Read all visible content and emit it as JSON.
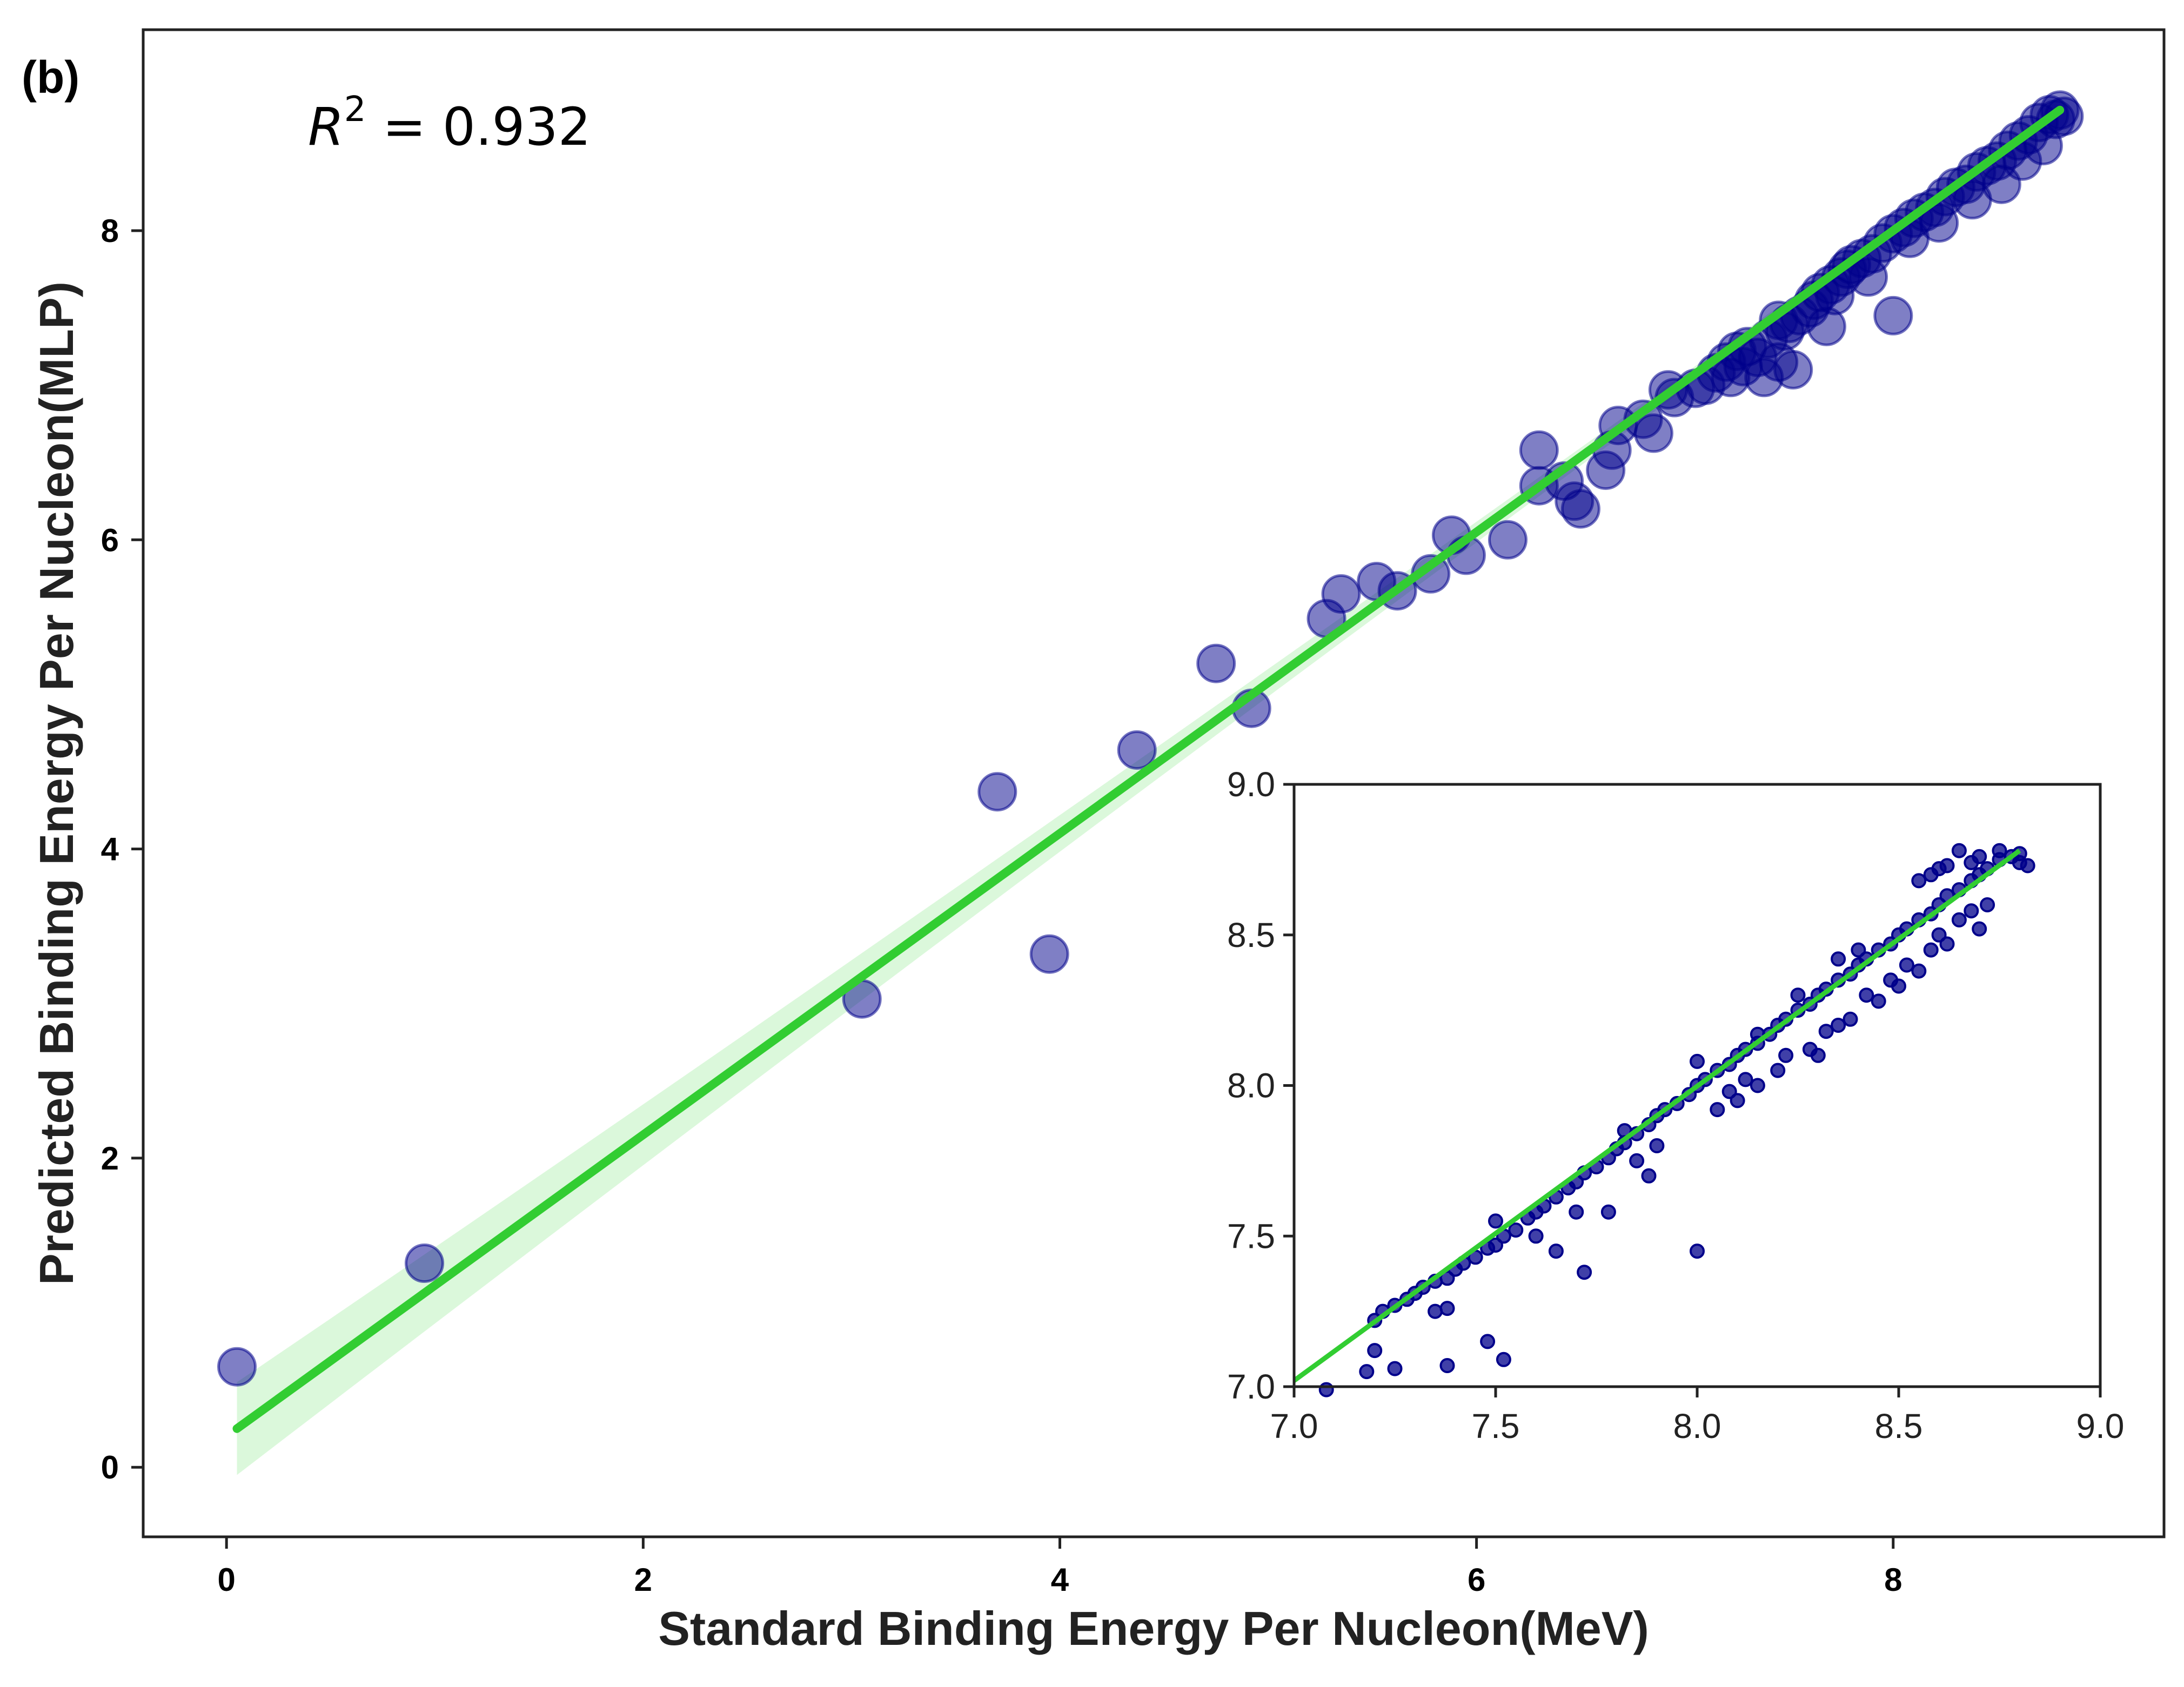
{
  "panel_label": "(b)",
  "annotation": {
    "r2_symbol": "R",
    "r2_exponent": "2",
    "r2_text": " = 0.932"
  },
  "colors": {
    "points": "#00008b",
    "fit_line": "#32cd32",
    "confidence_band": "#ccf5cc"
  },
  "chart_data": [
    {
      "type": "scatter",
      "xlabel": "Standard Binding Energy Per Nucleon(MeV)",
      "ylabel": "Predicted Binding Energy Per Nucleon(MLP)",
      "xlim": [
        -0.4,
        9.3
      ],
      "ylim": [
        -0.45,
        9.3
      ],
      "x_ticks": [
        "0",
        "2",
        "4",
        "6",
        "8"
      ],
      "y_ticks": [
        "0",
        "2",
        "4",
        "6",
        "8"
      ],
      "grid": false,
      "fit_line": {
        "x": [
          0.05,
          8.8
        ],
        "y": [
          0.25,
          8.78
        ]
      },
      "points": [
        [
          0.05,
          0.65
        ],
        [
          0.95,
          1.32
        ],
        [
          3.05,
          3.03
        ],
        [
          3.7,
          4.37
        ],
        [
          3.95,
          3.32
        ],
        [
          4.37,
          4.64
        ],
        [
          4.75,
          5.2
        ],
        [
          4.92,
          4.91
        ],
        [
          5.28,
          5.49
        ],
        [
          5.35,
          5.65
        ],
        [
          5.52,
          5.73
        ],
        [
          5.62,
          5.67
        ],
        [
          5.78,
          5.78
        ],
        [
          5.88,
          6.03
        ],
        [
          5.95,
          5.9
        ],
        [
          6.15,
          6.0
        ],
        [
          6.3,
          6.58
        ],
        [
          6.3,
          6.35
        ],
        [
          6.42,
          6.38
        ],
        [
          6.47,
          6.25
        ],
        [
          6.5,
          6.2
        ],
        [
          6.62,
          6.45
        ],
        [
          6.65,
          6.58
        ],
        [
          6.68,
          6.74
        ],
        [
          6.8,
          6.78
        ],
        [
          6.85,
          6.69
        ],
        [
          6.92,
          6.97
        ],
        [
          6.95,
          6.92
        ],
        [
          7.05,
          6.98
        ],
        [
          7.1,
          7.0
        ],
        [
          7.15,
          7.08
        ],
        [
          7.2,
          7.15
        ],
        [
          7.22,
          7.05
        ],
        [
          7.25,
          7.22
        ],
        [
          7.28,
          7.12
        ],
        [
          7.3,
          7.25
        ],
        [
          7.35,
          7.18
        ],
        [
          7.38,
          7.05
        ],
        [
          7.4,
          7.3
        ],
        [
          7.45,
          7.42
        ],
        [
          7.45,
          7.15
        ],
        [
          7.48,
          7.35
        ],
        [
          7.5,
          7.4
        ],
        [
          7.52,
          7.1
        ],
        [
          7.55,
          7.45
        ],
        [
          7.6,
          7.5
        ],
        [
          7.62,
          7.55
        ],
        [
          7.65,
          7.6
        ],
        [
          7.68,
          7.38
        ],
        [
          7.7,
          7.65
        ],
        [
          7.72,
          7.58
        ],
        [
          7.75,
          7.7
        ],
        [
          7.78,
          7.75
        ],
        [
          7.8,
          7.78
        ],
        [
          7.85,
          7.82
        ],
        [
          7.88,
          7.7
        ],
        [
          7.9,
          7.85
        ],
        [
          7.95,
          7.92
        ],
        [
          8.0,
          7.45
        ],
        [
          8.0,
          7.98
        ],
        [
          8.05,
          8.02
        ],
        [
          8.08,
          7.95
        ],
        [
          8.1,
          8.08
        ],
        [
          8.15,
          8.12
        ],
        [
          8.2,
          8.15
        ],
        [
          8.22,
          8.05
        ],
        [
          8.25,
          8.22
        ],
        [
          8.3,
          8.28
        ],
        [
          8.35,
          8.3
        ],
        [
          8.38,
          8.2
        ],
        [
          8.4,
          8.38
        ],
        [
          8.45,
          8.42
        ],
        [
          8.5,
          8.45
        ],
        [
          8.52,
          8.3
        ],
        [
          8.55,
          8.52
        ],
        [
          8.6,
          8.58
        ],
        [
          8.62,
          8.45
        ],
        [
          8.65,
          8.62
        ],
        [
          8.7,
          8.7
        ],
        [
          8.72,
          8.55
        ],
        [
          8.75,
          8.75
        ],
        [
          8.78,
          8.72
        ],
        [
          8.8,
          8.78
        ],
        [
          8.82,
          8.74
        ]
      ]
    },
    {
      "type": "scatter",
      "xlim": [
        7.0,
        9.0
      ],
      "ylim": [
        7.0,
        9.0
      ],
      "x_ticks": [
        "7.0",
        "7.5",
        "8.0",
        "8.5",
        "9.0"
      ],
      "y_ticks": [
        "7.0",
        "7.5",
        "8.0",
        "8.5",
        "9.0"
      ],
      "grid": false,
      "fit_line": {
        "x": [
          7.0,
          8.8
        ],
        "y": [
          7.02,
          8.78
        ]
      },
      "points": [
        [
          7.08,
          6.99
        ],
        [
          7.18,
          7.05
        ],
        [
          7.2,
          7.12
        ],
        [
          7.25,
          7.06
        ],
        [
          7.38,
          7.07
        ],
        [
          7.48,
          7.15
        ],
        [
          7.52,
          7.09
        ],
        [
          7.35,
          7.25
        ],
        [
          7.38,
          7.26
        ],
        [
          7.2,
          7.22
        ],
        [
          7.22,
          7.25
        ],
        [
          7.25,
          7.27
        ],
        [
          7.28,
          7.29
        ],
        [
          7.3,
          7.31
        ],
        [
          7.32,
          7.33
        ],
        [
          7.35,
          7.35
        ],
        [
          7.38,
          7.36
        ],
        [
          7.4,
          7.39
        ],
        [
          7.42,
          7.41
        ],
        [
          7.45,
          7.43
        ],
        [
          7.48,
          7.46
        ],
        [
          7.5,
          7.47
        ],
        [
          7.52,
          7.5
        ],
        [
          7.55,
          7.52
        ],
        [
          7.58,
          7.56
        ],
        [
          7.6,
          7.58
        ],
        [
          7.62,
          7.6
        ],
        [
          7.65,
          7.63
        ],
        [
          7.68,
          7.66
        ],
        [
          7.7,
          7.68
        ],
        [
          7.72,
          7.71
        ],
        [
          7.75,
          7.73
        ],
        [
          7.78,
          7.76
        ],
        [
          7.8,
          7.79
        ],
        [
          7.82,
          7.81
        ],
        [
          7.85,
          7.84
        ],
        [
          7.88,
          7.87
        ],
        [
          7.9,
          7.9
        ],
        [
          7.92,
          7.92
        ],
        [
          7.95,
          7.94
        ],
        [
          7.98,
          7.97
        ],
        [
          8.0,
          8.0
        ],
        [
          8.02,
          8.02
        ],
        [
          8.05,
          8.05
        ],
        [
          8.08,
          8.07
        ],
        [
          8.1,
          8.1
        ],
        [
          8.12,
          8.12
        ],
        [
          8.15,
          8.14
        ],
        [
          8.18,
          8.17
        ],
        [
          8.2,
          8.2
        ],
        [
          8.22,
          8.22
        ],
        [
          8.25,
          8.25
        ],
        [
          8.28,
          8.27
        ],
        [
          8.3,
          8.3
        ],
        [
          8.32,
          8.32
        ],
        [
          8.35,
          8.35
        ],
        [
          8.38,
          8.37
        ],
        [
          8.4,
          8.4
        ],
        [
          8.42,
          8.42
        ],
        [
          8.45,
          8.45
        ],
        [
          8.48,
          8.47
        ],
        [
          8.5,
          8.5
        ],
        [
          8.52,
          8.52
        ],
        [
          8.55,
          8.55
        ],
        [
          8.58,
          8.57
        ],
        [
          8.6,
          8.6
        ],
        [
          8.62,
          8.63
        ],
        [
          8.65,
          8.65
        ],
        [
          8.68,
          8.68
        ],
        [
          8.7,
          8.7
        ],
        [
          8.72,
          8.72
        ],
        [
          8.75,
          8.75
        ],
        [
          8.78,
          8.76
        ],
        [
          8.8,
          8.74
        ],
        [
          8.82,
          8.73
        ],
        [
          7.5,
          7.55
        ],
        [
          7.6,
          7.5
        ],
        [
          7.65,
          7.45
        ],
        [
          7.7,
          7.58
        ],
        [
          7.72,
          7.38
        ],
        [
          7.78,
          7.58
        ],
        [
          7.82,
          7.85
        ],
        [
          7.85,
          7.75
        ],
        [
          7.88,
          7.7
        ],
        [
          7.9,
          7.8
        ],
        [
          8.0,
          7.45
        ],
        [
          8.05,
          7.92
        ],
        [
          8.08,
          7.98
        ],
        [
          8.1,
          7.95
        ],
        [
          8.12,
          8.02
        ],
        [
          8.15,
          8.0
        ],
        [
          8.2,
          8.05
        ],
        [
          8.22,
          8.1
        ],
        [
          8.28,
          8.12
        ],
        [
          8.3,
          8.1
        ],
        [
          8.32,
          8.18
        ],
        [
          8.35,
          8.2
        ],
        [
          8.38,
          8.22
        ],
        [
          8.42,
          8.3
        ],
        [
          8.45,
          8.28
        ],
        [
          8.48,
          8.35
        ],
        [
          8.5,
          8.33
        ],
        [
          8.52,
          8.4
        ],
        [
          8.55,
          8.38
        ],
        [
          8.58,
          8.45
        ],
        [
          8.6,
          8.5
        ],
        [
          8.62,
          8.47
        ],
        [
          8.65,
          8.55
        ],
        [
          8.68,
          8.58
        ],
        [
          8.7,
          8.52
        ],
        [
          8.72,
          8.6
        ],
        [
          8.55,
          8.68
        ],
        [
          8.6,
          8.72
        ],
        [
          8.65,
          8.78
        ],
        [
          8.7,
          8.76
        ],
        [
          8.75,
          8.78
        ],
        [
          8.8,
          8.77
        ],
        [
          8.68,
          8.74
        ],
        [
          8.62,
          8.73
        ],
        [
          8.58,
          8.7
        ],
        [
          8.25,
          8.3
        ],
        [
          8.35,
          8.42
        ],
        [
          8.4,
          8.45
        ],
        [
          8.15,
          8.17
        ],
        [
          8.0,
          8.08
        ]
      ]
    }
  ]
}
